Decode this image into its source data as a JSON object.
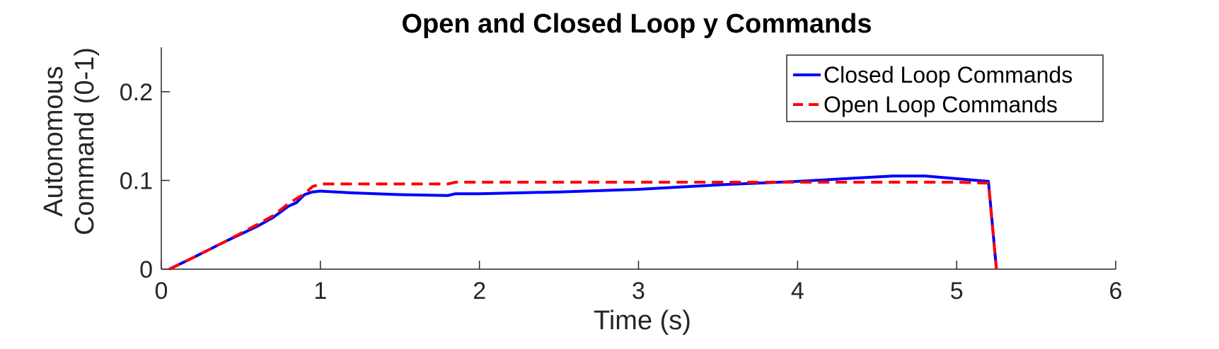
{
  "chart_data": {
    "type": "line",
    "title": "Open and Closed Loop y Commands",
    "xlabel": "Time (s)",
    "ylabel": [
      "Autonomous",
      "Command (0-1)"
    ],
    "xlim": [
      0,
      6
    ],
    "ylim": [
      0,
      0.25
    ],
    "xticks": [
      0,
      1,
      2,
      3,
      4,
      5,
      6
    ],
    "xtick_labels": [
      "0",
      "1",
      "2",
      "3",
      "4",
      "5",
      "6"
    ],
    "yticks": [
      0,
      0.1,
      0.2
    ],
    "ytick_labels": [
      "0",
      "0.1",
      "0.2"
    ],
    "grid": false,
    "legend_position": "top-right",
    "series": [
      {
        "name": "Closed Loop Commands",
        "color": "#0000ff",
        "style": "solid",
        "x": [
          0.05,
          0.2,
          0.4,
          0.6,
          0.7,
          0.8,
          0.85,
          0.9,
          0.95,
          1.0,
          1.2,
          1.5,
          1.8,
          1.85,
          2.0,
          2.5,
          3.0,
          3.5,
          4.0,
          4.3,
          4.6,
          4.8,
          5.0,
          5.2,
          5.25
        ],
        "y": [
          0.0,
          0.013,
          0.031,
          0.048,
          0.058,
          0.071,
          0.075,
          0.084,
          0.087,
          0.088,
          0.086,
          0.084,
          0.083,
          0.085,
          0.085,
          0.087,
          0.09,
          0.095,
          0.099,
          0.102,
          0.105,
          0.105,
          0.102,
          0.099,
          0.0
        ]
      },
      {
        "name": "Open Loop Commands",
        "color": "#ff0000",
        "style": "dashed",
        "x": [
          0.05,
          0.2,
          0.4,
          0.6,
          0.7,
          0.8,
          0.9,
          0.95,
          1.0,
          1.5,
          1.8,
          1.85,
          2.0,
          3.0,
          4.0,
          5.0,
          5.2,
          5.25
        ],
        "y": [
          0.0,
          0.013,
          0.031,
          0.05,
          0.06,
          0.074,
          0.085,
          0.093,
          0.096,
          0.096,
          0.096,
          0.098,
          0.098,
          0.098,
          0.098,
          0.098,
          0.097,
          0.0
        ]
      }
    ]
  }
}
